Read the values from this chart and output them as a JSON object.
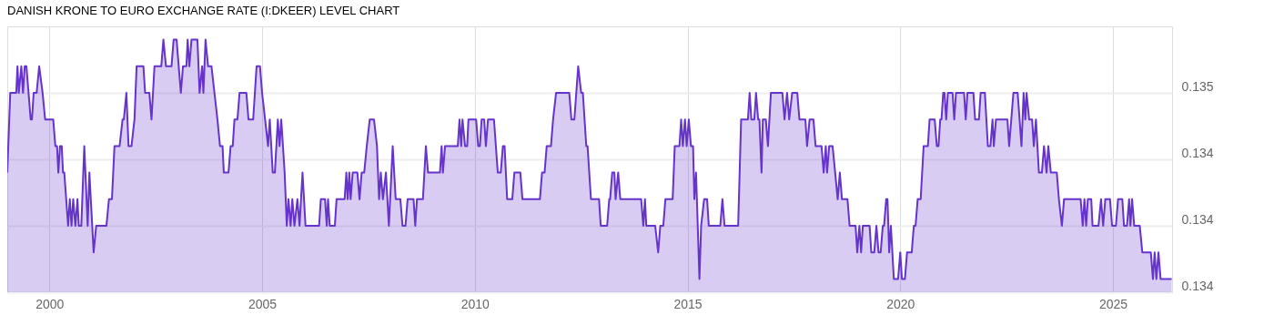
{
  "chart_data": {
    "type": "area",
    "title": "DANISH KRONE TO EURO EXCHANGE RATE (I:DKEER) LEVEL CHART",
    "x": [
      1999.01,
      1999.08,
      1999.22,
      1999.25,
      1999.28,
      1999.34,
      1999.38,
      1999.42,
      1999.46,
      1999.56,
      1999.59,
      1999.63,
      1999.7,
      1999.76,
      1999.84,
      1999.9,
      2000.09,
      2000.14,
      2000.18,
      2000.21,
      2000.25,
      2000.29,
      2000.32,
      2000.35,
      2000.44,
      2000.48,
      2000.52,
      2000.56,
      2000.61,
      2000.66,
      2000.69,
      2000.75,
      2000.82,
      2000.9,
      2000.94,
      2001.04,
      2001.1,
      2001.34,
      2001.4,
      2001.47,
      2001.53,
      2001.65,
      2001.72,
      2001.75,
      2001.81,
      2001.86,
      2001.93,
      2002.0,
      2002.05,
      2002.21,
      2002.25,
      2002.35,
      2002.4,
      2002.47,
      2002.63,
      2002.68,
      2002.74,
      2002.87,
      2002.92,
      2002.99,
      2003.04,
      2003.09,
      2003.14,
      2003.22,
      2003.25,
      2003.29,
      2003.34,
      2003.48,
      2003.53,
      2003.59,
      2003.62,
      2003.67,
      2003.73,
      2003.81,
      2003.88,
      2003.95,
      2004.01,
      2004.07,
      2004.1,
      2004.21,
      2004.26,
      2004.31,
      2004.35,
      2004.42,
      2004.47,
      2004.63,
      2004.68,
      2004.79,
      2004.87,
      2004.95,
      2005.0,
      2005.07,
      2005.14,
      2005.18,
      2005.25,
      2005.3,
      2005.37,
      2005.41,
      2005.45,
      2005.53,
      2005.58,
      2005.62,
      2005.67,
      2005.71,
      2005.76,
      2005.83,
      2005.88,
      2005.95,
      2006.02,
      2006.34,
      2006.38,
      2006.48,
      2006.52,
      2006.55,
      2006.59,
      2006.71,
      2006.75,
      2006.94,
      2006.98,
      2007.01,
      2007.05,
      2007.08,
      2007.13,
      2007.24,
      2007.29,
      2007.34,
      2007.4,
      2007.46,
      2007.53,
      2007.63,
      2007.7,
      2007.75,
      2007.79,
      2007.84,
      2007.91,
      2007.98,
      2008.07,
      2008.14,
      2008.25,
      2008.3,
      2008.37,
      2008.42,
      2008.56,
      2008.6,
      2008.64,
      2008.78,
      2008.85,
      2008.9,
      2009.18,
      2009.22,
      2009.25,
      2009.3,
      2009.6,
      2009.64,
      2009.68,
      2009.71,
      2009.77,
      2009.82,
      2009.85,
      2010.03,
      2010.08,
      2010.12,
      2010.16,
      2010.22,
      2010.26,
      2010.31,
      2010.45,
      2010.54,
      2010.61,
      2010.66,
      2010.7,
      2010.76,
      2010.88,
      2010.93,
      2011.07,
      2011.12,
      2011.53,
      2011.58,
      2011.64,
      2011.69,
      2011.79,
      2011.84,
      2011.91,
      2012.22,
      2012.27,
      2012.34,
      2012.43,
      2012.5,
      2012.54,
      2012.62,
      2012.65,
      2012.73,
      2012.92,
      2012.96,
      2013.11,
      2013.16,
      2013.18,
      2013.23,
      2013.28,
      2013.31,
      2013.37,
      2013.42,
      2013.91,
      2013.96,
      2014.0,
      2014.03,
      2014.24,
      2014.31,
      2014.36,
      2014.43,
      2014.48,
      2014.65,
      2014.7,
      2014.81,
      2014.85,
      2014.89,
      2014.94,
      2014.98,
      2015.03,
      2015.08,
      2015.13,
      2015.16,
      2015.2,
      2015.28,
      2015.32,
      2015.39,
      2015.46,
      2015.5,
      2015.77,
      2015.82,
      2015.87,
      2016.19,
      2016.26,
      2016.42,
      2016.46,
      2016.5,
      2016.57,
      2016.61,
      2016.66,
      2016.69,
      2016.74,
      2016.77,
      2016.84,
      2016.89,
      2016.96,
      2017.23,
      2017.28,
      2017.34,
      2017.39,
      2017.46,
      2017.58,
      2017.63,
      2017.77,
      2017.81,
      2017.87,
      2017.96,
      2018.01,
      2018.15,
      2018.2,
      2018.25,
      2018.28,
      2018.33,
      2018.41,
      2018.47,
      2018.53,
      2018.58,
      2018.63,
      2018.76,
      2018.81,
      2018.95,
      2018.99,
      2019.04,
      2019.08,
      2019.12,
      2019.28,
      2019.32,
      2019.39,
      2019.44,
      2019.49,
      2019.54,
      2019.59,
      2019.62,
      2019.67,
      2019.7,
      2019.74,
      2019.78,
      2019.85,
      2019.95,
      2020.0,
      2020.04,
      2020.11,
      2020.16,
      2020.27,
      2020.32,
      2020.36,
      2020.41,
      2020.48,
      2020.55,
      2020.65,
      2020.69,
      2020.81,
      2020.86,
      2020.9,
      2020.94,
      2020.97,
      2021.01,
      2021.04,
      2021.08,
      2021.12,
      2021.23,
      2021.27,
      2021.31,
      2021.5,
      2021.54,
      2021.58,
      2021.72,
      2021.76,
      2021.85,
      2021.89,
      2021.99,
      2022.06,
      2022.12,
      2022.17,
      2022.2,
      2022.25,
      2022.52,
      2022.56,
      2022.66,
      2022.76,
      2022.85,
      2022.9,
      2022.94,
      2022.97,
      2023.03,
      2023.1,
      2023.14,
      2023.19,
      2023.26,
      2023.33,
      2023.38,
      2023.44,
      2023.48,
      2023.54,
      2023.68,
      2023.73,
      2023.8,
      2023.85,
      2024.24,
      2024.29,
      2024.33,
      2024.37,
      2024.41,
      2024.49,
      2024.52,
      2024.66,
      2024.72,
      2024.77,
      2024.82,
      2024.93,
      2024.98,
      2025.07,
      2025.12,
      2025.22,
      2025.26,
      2025.33,
      2025.38,
      2025.41,
      2025.45,
      2025.5,
      2025.63,
      2025.69,
      2025.89,
      2025.94,
      2025.98,
      2026.02,
      2026.07,
      2026.12,
      2026.38
    ],
    "series": [
      {
        "color": "#6633cc",
        "values": [
          0.1342,
          0.1345,
          0.1345,
          0.1346,
          0.1345,
          0.1346,
          0.1345,
          0.1346,
          0.1346,
          0.1344,
          0.1344,
          0.1345,
          0.1345,
          0.1346,
          0.1345,
          0.1344,
          0.1344,
          0.1343,
          0.1343,
          0.1342,
          0.1343,
          0.1343,
          0.1342,
          0.1342,
          0.134,
          0.1341,
          0.134,
          0.1341,
          0.134,
          0.1341,
          0.134,
          0.134,
          0.1343,
          0.134,
          0.1342,
          0.1339,
          0.134,
          0.134,
          0.1341,
          0.1341,
          0.1343,
          0.1343,
          0.1344,
          0.1344,
          0.1345,
          0.1343,
          0.1343,
          0.1344,
          0.1346,
          0.1346,
          0.1345,
          0.1345,
          0.1344,
          0.1346,
          0.1346,
          0.1347,
          0.1346,
          0.1346,
          0.1347,
          0.1347,
          0.1346,
          0.1345,
          0.1346,
          0.1346,
          0.1347,
          0.1346,
          0.1347,
          0.1347,
          0.1345,
          0.1346,
          0.1345,
          0.1347,
          0.1346,
          0.1346,
          0.1345,
          0.1344,
          0.1343,
          0.1343,
          0.1342,
          0.1342,
          0.1343,
          0.1343,
          0.1344,
          0.1344,
          0.1345,
          0.1345,
          0.1344,
          0.1344,
          0.1346,
          0.1346,
          0.1345,
          0.1344,
          0.1343,
          0.1344,
          0.1342,
          0.1342,
          0.1344,
          0.1343,
          0.1344,
          0.1342,
          0.134,
          0.1341,
          0.134,
          0.1341,
          0.134,
          0.1341,
          0.134,
          0.1342,
          0.134,
          0.134,
          0.1341,
          0.1341,
          0.134,
          0.1341,
          0.134,
          0.134,
          0.1341,
          0.1341,
          0.1342,
          0.1341,
          0.1342,
          0.1341,
          0.1342,
          0.1342,
          0.1341,
          0.1342,
          0.1342,
          0.1343,
          0.1344,
          0.1344,
          0.1343,
          0.1341,
          0.1342,
          0.1341,
          0.1342,
          0.134,
          0.1343,
          0.1341,
          0.1341,
          0.134,
          0.134,
          0.1341,
          0.1341,
          0.134,
          0.1341,
          0.1341,
          0.1343,
          0.1342,
          0.1342,
          0.1343,
          0.1342,
          0.1343,
          0.1343,
          0.1344,
          0.1343,
          0.1344,
          0.1343,
          0.1343,
          0.1344,
          0.1344,
          0.1343,
          0.1343,
          0.1344,
          0.1344,
          0.1343,
          0.1344,
          0.1344,
          0.1342,
          0.1342,
          0.1343,
          0.1343,
          0.1341,
          0.1341,
          0.1342,
          0.1342,
          0.1341,
          0.1341,
          0.1342,
          0.1342,
          0.1343,
          0.1343,
          0.1344,
          0.1345,
          0.1345,
          0.1344,
          0.1344,
          0.1346,
          0.1345,
          0.1345,
          0.1343,
          0.1343,
          0.1341,
          0.1341,
          0.134,
          0.134,
          0.1341,
          0.1341,
          0.1342,
          0.1342,
          0.1341,
          0.1342,
          0.1341,
          0.1341,
          0.134,
          0.1341,
          0.134,
          0.134,
          0.1339,
          0.134,
          0.134,
          0.1341,
          0.1341,
          0.1343,
          0.1343,
          0.1344,
          0.1343,
          0.1344,
          0.1343,
          0.1344,
          0.1343,
          0.1343,
          0.1341,
          0.1342,
          0.1338,
          0.134,
          0.1341,
          0.1341,
          0.134,
          0.134,
          0.1341,
          0.134,
          0.134,
          0.1344,
          0.1344,
          0.1345,
          0.1344,
          0.1344,
          0.1345,
          0.1344,
          0.1344,
          0.1342,
          0.1344,
          0.1344,
          0.1343,
          0.1345,
          0.1345,
          0.1344,
          0.1345,
          0.1344,
          0.1345,
          0.1345,
          0.1344,
          0.1344,
          0.1343,
          0.1344,
          0.1344,
          0.1343,
          0.1343,
          0.1342,
          0.1343,
          0.1342,
          0.1343,
          0.1343,
          0.1342,
          0.1341,
          0.1342,
          0.1341,
          0.1341,
          0.134,
          0.134,
          0.1339,
          0.134,
          0.1339,
          0.134,
          0.134,
          0.1339,
          0.1339,
          0.134,
          0.1339,
          0.1339,
          0.134,
          0.134,
          0.1341,
          0.1341,
          0.1339,
          0.134,
          0.1338,
          0.1338,
          0.1339,
          0.1338,
          0.1338,
          0.1339,
          0.1339,
          0.134,
          0.134,
          0.1341,
          0.1341,
          0.1343,
          0.1343,
          0.1344,
          0.1344,
          0.1343,
          0.1343,
          0.1344,
          0.1344,
          0.1345,
          0.1345,
          0.1344,
          0.1345,
          0.1345,
          0.1344,
          0.1345,
          0.1345,
          0.1344,
          0.1345,
          0.1345,
          0.1344,
          0.1344,
          0.1345,
          0.1345,
          0.1343,
          0.1343,
          0.1344,
          0.1343,
          0.1344,
          0.1344,
          0.1343,
          0.1345,
          0.1345,
          0.1343,
          0.1345,
          0.1344,
          0.1345,
          0.1344,
          0.1344,
          0.1343,
          0.1344,
          0.1342,
          0.1342,
          0.1343,
          0.1342,
          0.1343,
          0.1342,
          0.1342,
          0.1341,
          0.134,
          0.1341,
          0.1341,
          0.134,
          0.1341,
          0.134,
          0.1341,
          0.1341,
          0.134,
          0.134,
          0.1341,
          0.134,
          0.1341,
          0.1341,
          0.134,
          0.134,
          0.1341,
          0.1341,
          0.134,
          0.134,
          0.1341,
          0.134,
          0.1341,
          0.134,
          0.134,
          0.1339,
          0.1339,
          0.1338,
          0.1339,
          0.1338,
          0.1339,
          0.1338,
          0.1338
        ]
      }
    ],
    "xlim": [
      1999.01,
      2026.39
    ],
    "xticks": [
      2000,
      2005,
      2010,
      2015,
      2020,
      2025
    ],
    "ylim": [
      0.13375,
      0.13475
    ],
    "yticks": [
      {
        "value": 0.13375,
        "label": "0.134"
      },
      {
        "value": 0.134,
        "label": "0.134"
      },
      {
        "value": 0.13425,
        "label": "0.134"
      },
      {
        "value": 0.1345,
        "label": "0.135"
      }
    ],
    "grid": true
  }
}
